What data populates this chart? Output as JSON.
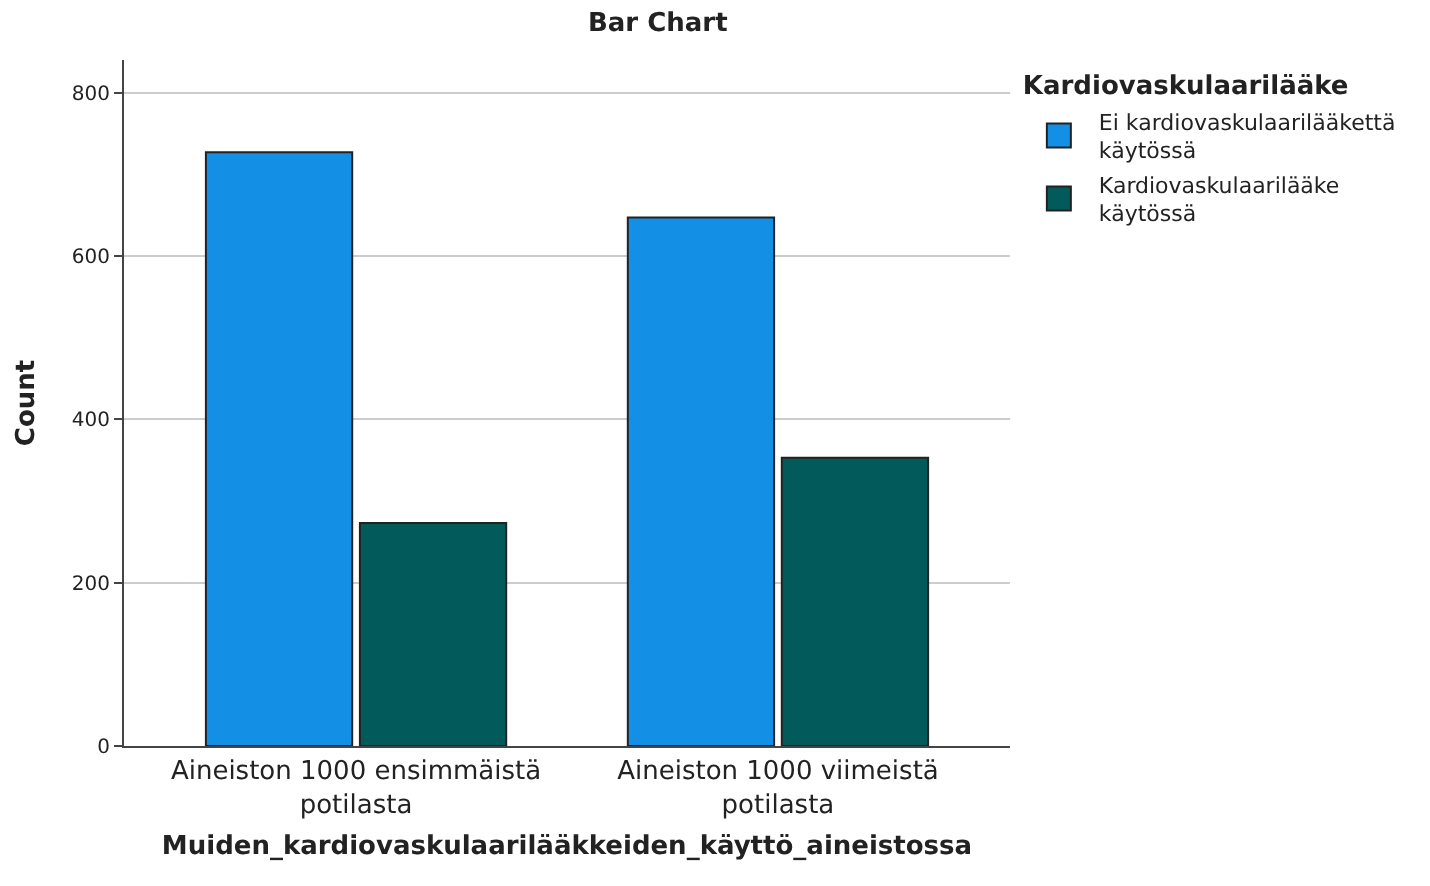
{
  "chart_data": {
    "type": "bar",
    "title": "Bar Chart",
    "xlabel": "Muiden_kardiovaskulaarilääkkeiden_käyttö_aineistossa",
    "ylabel": "Count",
    "legend_title": "Kardiovaskulaarilääke",
    "categories": [
      "Aineiston 1000 ensimmäistä potilasta",
      "Aineiston 1000 viimeistä potilasta"
    ],
    "series": [
      {
        "name": "Ei kardiovaskulaarilääkettä käytössä",
        "color": "#1390e6",
        "values": [
          727,
          647
        ]
      },
      {
        "name": "Kardiovaskulaarilääke käytössä",
        "color": "#025b5a",
        "values": [
          273,
          353
        ]
      }
    ],
    "ylim": [
      0,
      840
    ],
    "yticks": [
      0,
      200,
      400,
      600,
      800
    ],
    "grid": "y",
    "legend": "top right"
  }
}
